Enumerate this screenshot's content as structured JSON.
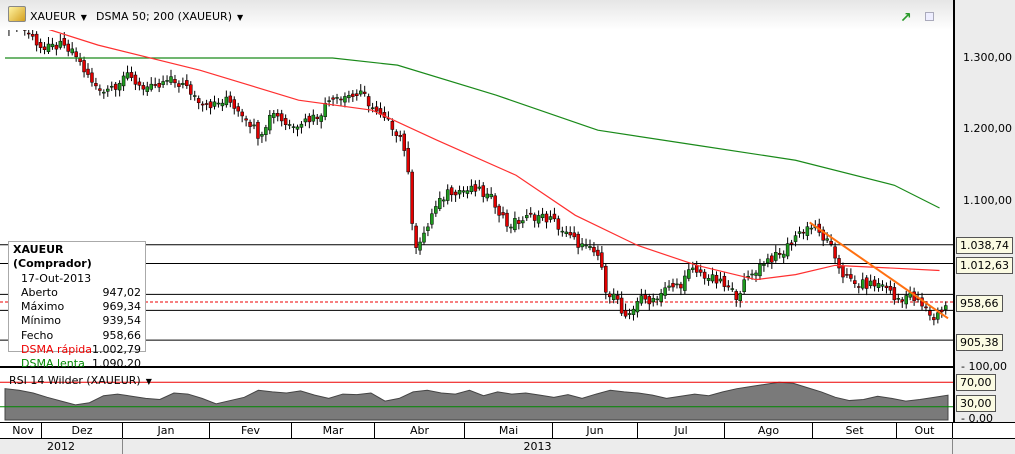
{
  "header": {
    "symbol": "XAUEUR",
    "indicator": "DSMA 50; 200 (XAUEUR)",
    "chart_type_icon": "line-chart-icon",
    "maximize_icon": "maximize-icon",
    "gold_icon": "gold-bar-icon"
  },
  "legend": {
    "title": "XAUEUR (Comprador)",
    "date": "17-Out-2013",
    "rows": [
      {
        "label": "Aberto",
        "value": "947,02"
      },
      {
        "label": "Máximo",
        "value": "969,34"
      },
      {
        "label": "Mínimo",
        "value": "939,54"
      },
      {
        "label": "Fecho",
        "value": "958,66"
      },
      {
        "label": "DSMA rápida",
        "value": "1.002,79"
      },
      {
        "label": "DSMA lenta",
        "value": "1.090,20"
      }
    ]
  },
  "price_axis": {
    "ticks": [
      "1.300,00",
      "1.200,00",
      "1.100,00"
    ],
    "tick_values": [
      1300,
      1200,
      1100
    ],
    "labels": [
      {
        "text": "1.038,74",
        "value": 1038.74
      },
      {
        "text": "1.012,63",
        "value": 1012.63
      },
      {
        "text": "905,38",
        "value": 905.38
      },
      {
        "text": "958,66",
        "value": 958.66
      }
    ]
  },
  "rsi": {
    "title": "RSI 14 Wilder (XAUEUR)",
    "ticks": [
      "100,00",
      "0,00"
    ],
    "labels": [
      "70,00",
      "30,00"
    ],
    "values": [
      58,
      55,
      50,
      42,
      35,
      28,
      32,
      45,
      48,
      44,
      40,
      38,
      50,
      48,
      40,
      30,
      36,
      42,
      55,
      52,
      50,
      54,
      46,
      40,
      48,
      47,
      50,
      35,
      40,
      52,
      55,
      50,
      48,
      55,
      45,
      52,
      48,
      50,
      46,
      42,
      47,
      40,
      48,
      55,
      52,
      50,
      46,
      40,
      44,
      48,
      45,
      52,
      58,
      62,
      66,
      70,
      68,
      60,
      52,
      42,
      36,
      38,
      44,
      40,
      35,
      38,
      42,
      46
    ]
  },
  "time_axis": {
    "months": [
      "Nov",
      "Dez",
      "Jan",
      "Fev",
      "Mar",
      "Abr",
      "Mai",
      "Jun",
      "Jul",
      "Ago",
      "Set",
      "Out"
    ],
    "years": [
      "2012",
      "2013"
    ]
  },
  "colors": {
    "up": "#1f9a1f",
    "down": "#e00000",
    "fast_ma": "#ff3030",
    "slow_ma": "#1a8a1a",
    "trend": "#ff7010"
  },
  "chart_data": {
    "type": "candlestick",
    "symbol": "XAUEUR",
    "day_range": [
      0,
      334
    ],
    "ylim": [
      880,
      1380
    ],
    "closes": [
      [
        0,
        1345
      ],
      [
        4,
        1353
      ],
      [
        9,
        1332
      ],
      [
        14,
        1311
      ],
      [
        19,
        1318
      ],
      [
        25,
        1304
      ],
      [
        30,
        1269
      ],
      [
        33,
        1255
      ],
      [
        39,
        1262
      ],
      [
        42,
        1276
      ],
      [
        48,
        1262
      ],
      [
        53,
        1255
      ],
      [
        58,
        1269
      ],
      [
        63,
        1262
      ],
      [
        69,
        1241
      ],
      [
        74,
        1234
      ],
      [
        79,
        1241
      ],
      [
        85,
        1220
      ],
      [
        90,
        1192
      ],
      [
        95,
        1227
      ],
      [
        100,
        1206
      ],
      [
        106,
        1213
      ],
      [
        111,
        1220
      ],
      [
        116,
        1248
      ],
      [
        121,
        1248
      ],
      [
        127,
        1248
      ],
      [
        132,
        1220
      ],
      [
        137,
        1206
      ],
      [
        141,
        1185
      ],
      [
        143,
        1129
      ],
      [
        145,
        1038
      ],
      [
        148,
        1045
      ],
      [
        151,
        1080
      ],
      [
        157,
        1115
      ],
      [
        162,
        1115
      ],
      [
        167,
        1115
      ],
      [
        173,
        1101
      ],
      [
        178,
        1066
      ],
      [
        183,
        1073
      ],
      [
        188,
        1080
      ],
      [
        194,
        1073
      ],
      [
        199,
        1052
      ],
      [
        204,
        1038
      ],
      [
        210,
        1024
      ],
      [
        213,
        976
      ],
      [
        217,
        962
      ],
      [
        219,
        927
      ],
      [
        224,
        962
      ],
      [
        229,
        962
      ],
      [
        234,
        976
      ],
      [
        239,
        983
      ],
      [
        243,
        1003
      ],
      [
        248,
        996
      ],
      [
        254,
        983
      ],
      [
        259,
        969
      ],
      [
        264,
        996
      ],
      [
        269,
        1017
      ],
      [
        275,
        1024
      ],
      [
        280,
        1052
      ],
      [
        285,
        1066
      ],
      [
        289,
        1052
      ],
      [
        292,
        1038
      ],
      [
        297,
        996
      ],
      [
        301,
        983
      ],
      [
        306,
        983
      ],
      [
        312,
        983
      ],
      [
        315,
        962
      ],
      [
        320,
        969
      ],
      [
        326,
        948
      ],
      [
        329,
        936
      ],
      [
        334,
        958.66
      ]
    ],
    "fast_ma": [
      [
        5,
        1353
      ],
      [
        33,
        1318
      ],
      [
        69,
        1283
      ],
      [
        104,
        1241
      ],
      [
        130,
        1227
      ],
      [
        153,
        1185
      ],
      [
        181,
        1136
      ],
      [
        202,
        1080
      ],
      [
        224,
        1038
      ],
      [
        245,
        1010
      ],
      [
        266,
        990
      ],
      [
        280,
        997
      ],
      [
        294,
        1010
      ],
      [
        315,
        1006
      ],
      [
        331,
        1002.79
      ]
    ],
    "slow_ma": [
      [
        0,
        1300
      ],
      [
        116,
        1300
      ],
      [
        139,
        1290
      ],
      [
        174,
        1248
      ],
      [
        210,
        1199
      ],
      [
        245,
        1178
      ],
      [
        280,
        1157
      ],
      [
        315,
        1122
      ],
      [
        331,
        1090.2
      ]
    ],
    "trendline": [
      [
        285,
        1070
      ],
      [
        334,
        936
      ]
    ],
    "hlines": [
      1038.74,
      1012.63,
      969.34,
      947.02,
      905.38
    ],
    "last": 958.66
  }
}
